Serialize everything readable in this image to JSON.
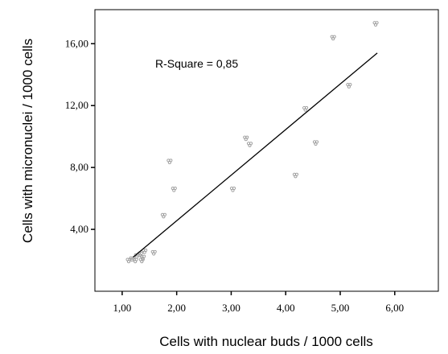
{
  "chart_data": {
    "type": "scatter",
    "xlabel": "Cells with nuclear buds / 1000 cells",
    "ylabel": "Cells with micronuclei / 1000 cells",
    "annotation": "R-Square = 0,85",
    "xlim": [
      0.5,
      6.8
    ],
    "ylim": [
      0.0,
      18.2
    ],
    "x_ticks": [
      1.0,
      2.0,
      3.0,
      4.0,
      5.0,
      6.0
    ],
    "x_tick_labels": [
      "1,00",
      "2,00",
      "3,00",
      "4,00",
      "5,00",
      "6,00"
    ],
    "y_ticks": [
      4.0,
      8.0,
      12.0,
      16.0
    ],
    "y_tick_labels": [
      "4,00",
      "8,00",
      "12,00",
      "16,00"
    ],
    "grid": false,
    "marker_color": "#9a9a9a",
    "line_color": "#000000",
    "fit_line": {
      "x": [
        1.2,
        5.68
      ],
      "y": [
        2.2,
        15.4
      ]
    },
    "points": [
      {
        "x": 1.12,
        "y": 2.0
      },
      {
        "x": 1.18,
        "y": 2.1
      },
      {
        "x": 1.24,
        "y": 2.0
      },
      {
        "x": 1.27,
        "y": 2.3
      },
      {
        "x": 1.33,
        "y": 2.4
      },
      {
        "x": 1.36,
        "y": 2.0
      },
      {
        "x": 1.38,
        "y": 2.2
      },
      {
        "x": 1.41,
        "y": 2.6
      },
      {
        "x": 1.58,
        "y": 2.5
      },
      {
        "x": 1.76,
        "y": 4.9
      },
      {
        "x": 1.87,
        "y": 8.4
      },
      {
        "x": 1.95,
        "y": 6.6
      },
      {
        "x": 3.03,
        "y": 6.6
      },
      {
        "x": 3.27,
        "y": 9.9
      },
      {
        "x": 3.34,
        "y": 9.5
      },
      {
        "x": 4.18,
        "y": 7.5
      },
      {
        "x": 4.36,
        "y": 11.8
      },
      {
        "x": 4.55,
        "y": 9.6
      },
      {
        "x": 4.87,
        "y": 16.4
      },
      {
        "x": 5.16,
        "y": 13.3
      },
      {
        "x": 5.65,
        "y": 17.3
      }
    ]
  }
}
